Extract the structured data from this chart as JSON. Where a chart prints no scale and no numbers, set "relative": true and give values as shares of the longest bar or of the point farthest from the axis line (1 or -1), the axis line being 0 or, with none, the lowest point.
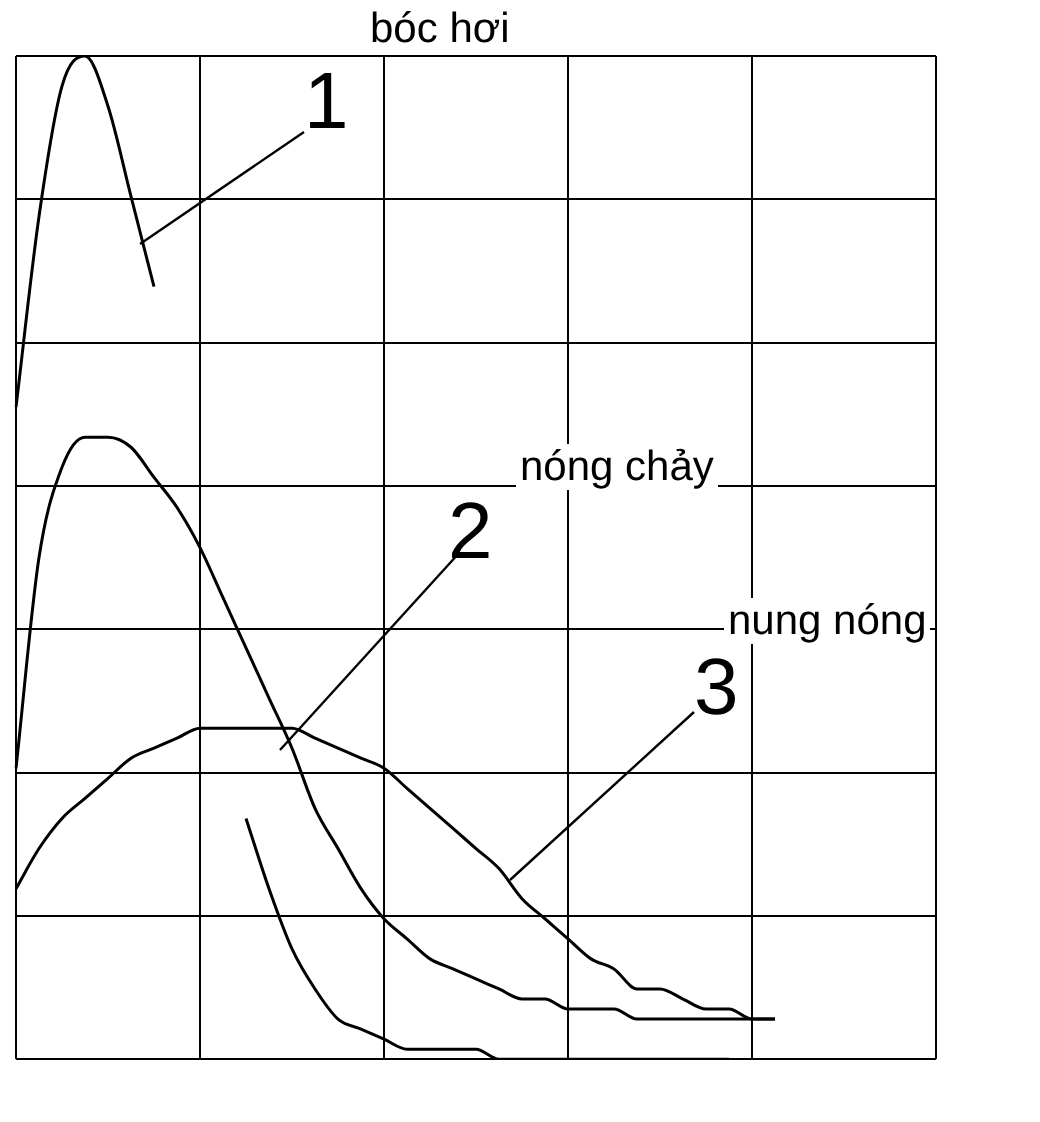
{
  "chart_data": {
    "type": "line",
    "relative": true,
    "grid": true,
    "legend": false,
    "marker": "none",
    "line_style": "solid",
    "categories": [
      null,
      null,
      null,
      null,
      null,
      null,
      null,
      null,
      null,
      null,
      null,
      null,
      null,
      null,
      null,
      null,
      null,
      null,
      null,
      null,
      null,
      null,
      null,
      null,
      null,
      null,
      null,
      null,
      null,
      null,
      null,
      null,
      null,
      null,
      null,
      null,
      null,
      null,
      null,
      null,
      null
    ],
    "series": [
      {
        "color": "#000000",
        "values": [
          0.65,
          0.84,
          0.97,
          1.0,
          0.95,
          0.86,
          0.77,
          null,
          null,
          null,
          null,
          null,
          null,
          null,
          null,
          null,
          null,
          null,
          null,
          null,
          null,
          null,
          null,
          null,
          null,
          null,
          null,
          null,
          null,
          null,
          null,
          null,
          null,
          null,
          null,
          null,
          null,
          null,
          null,
          null,
          null
        ]
      },
      {
        "color": "#000000",
        "values": [
          0.29,
          0.5,
          0.59,
          0.62,
          0.62,
          0.61,
          0.58,
          0.55,
          0.51,
          0.46,
          0.41,
          0.36,
          0.31,
          0.25,
          0.21,
          0.17,
          0.14,
          0.12,
          0.1,
          0.09,
          0.08,
          0.07,
          0.06,
          0.06,
          0.05,
          0.05,
          0.05,
          0.04,
          0.04,
          0.04,
          0.04,
          0.04,
          0.04,
          0.04,
          null,
          null,
          null,
          null,
          null,
          null,
          null
        ]
      },
      {
        "color": "#000000",
        "values": [
          0.17,
          0.21,
          0.24,
          0.26,
          0.28,
          0.3,
          0.31,
          0.32,
          0.33,
          0.33,
          0.33,
          0.33,
          0.33,
          0.32,
          0.31,
          0.3,
          0.29,
          0.27,
          0.25,
          0.23,
          0.21,
          0.19,
          0.16,
          0.14,
          0.12,
          0.1,
          0.09,
          0.07,
          0.07,
          0.06,
          0.05,
          0.05,
          0.04,
          0.04,
          null,
          null,
          null,
          null,
          null,
          null,
          null
        ]
      },
      {
        "color": "#000000",
        "values": [
          null,
          null,
          null,
          null,
          null,
          null,
          null,
          null,
          null,
          null,
          0.24,
          0.17,
          0.11,
          0.07,
          0.04,
          0.03,
          0.02,
          0.01,
          0.01,
          0.01,
          0.01,
          0.0,
          0.0,
          0.0,
          0.0,
          0.0,
          0.0,
          0.0,
          0.0,
          0.0,
          0.0,
          0.0,
          null,
          null,
          null,
          null,
          null,
          null,
          null,
          null,
          null
        ]
      }
    ],
    "annotations": [
      "1",
      "bóc hơi",
      "2",
      "nóng chảy",
      "3",
      "nung nóng"
    ]
  }
}
